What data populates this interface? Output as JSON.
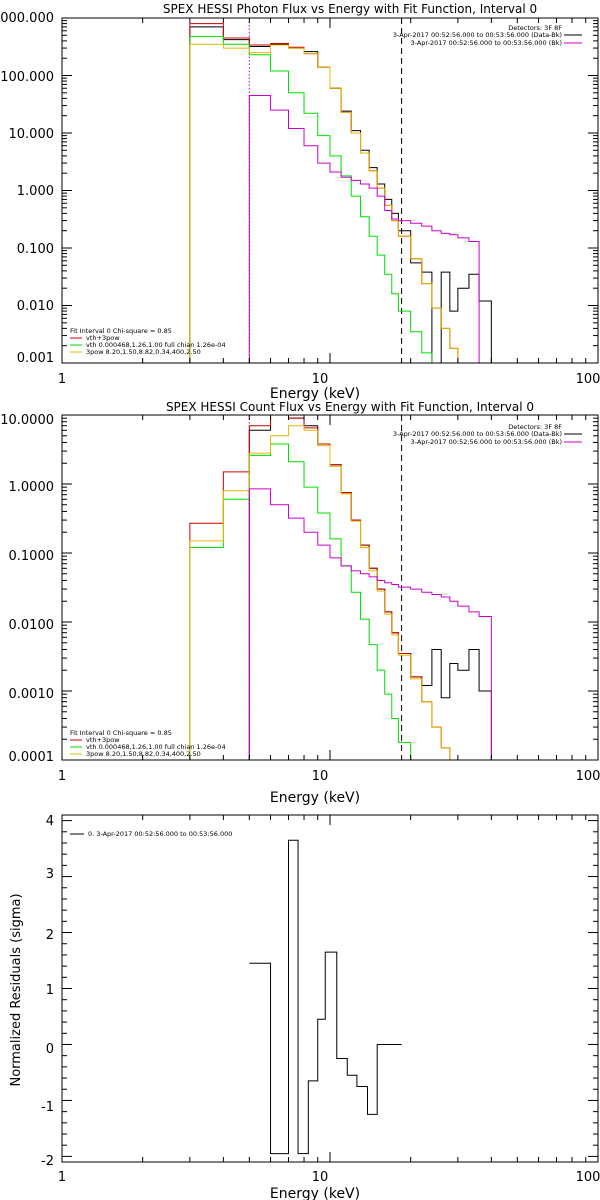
{
  "colors": {
    "data": "#000000",
    "vth_plus_3pow": "#cc0000",
    "vth": "#00dd00",
    "pow": "#e6b800",
    "background": "#cc00cc",
    "marker_low": "#cc00cc",
    "marker_high": "#000000"
  },
  "chart_data": [
    {
      "id": "photon",
      "type": "line",
      "title": "SPEX HESSI Photon Flux vs Energy with Fit Function, Interval 0",
      "xlabel": "Energy (keV)",
      "ylabel": "",
      "xscale": "log",
      "yscale": "log",
      "xlim": [
        1,
        100
      ],
      "ylim": [
        0.001,
        1000
      ],
      "xticks": [
        1,
        10,
        100
      ],
      "xtick_labels": [
        "1",
        "10",
        "100"
      ],
      "yticks": [
        0.001,
        0.01,
        0.1,
        1,
        10,
        100,
        1000
      ],
      "ytick_labels": [
        "0.001",
        "0.010",
        "0.100",
        "1.000",
        "10.000",
        "100.000",
        "1000.000"
      ],
      "legend_placement": "top-right",
      "legend_header": "Detectors: 3F 8F",
      "legend_entries": [
        {
          "label": "3-Apr-2017 00:52:56.000 to 00:53:56.000 (Data-Bk)",
          "color": "#000000"
        },
        {
          "label": "3-Apr-2017 00:52:56.000 to 00:53:56.000 (Bk)",
          "color": "#cc00cc"
        }
      ],
      "fit_labels": [
        {
          "text": "Fit Interval 0   Chi-square = 0.85",
          "color": "#000000"
        },
        {
          "text": "vth+3pow",
          "color": "#cc0000"
        },
        {
          "text": "vth 0.000468,1.26,1.00  full chian 1.26e-04",
          "color": "#00dd00"
        },
        {
          "text": "3pow 8.20,1.50,8.82,0.34,400,2.50",
          "color": "#e6b800"
        }
      ],
      "vlines": [
        {
          "x": 5.0,
          "color": "#cc00cc",
          "style": "dotted"
        },
        {
          "x": 18.5,
          "color": "#000000",
          "style": "dashed"
        }
      ],
      "bin_edges": [
        3,
        4,
        5,
        6,
        7,
        8,
        9,
        10,
        11,
        12,
        13,
        14,
        15,
        16,
        17,
        18,
        20,
        22,
        24,
        26,
        28,
        30,
        33,
        36,
        40
      ],
      "series": [
        {
          "name": "Data-Bk",
          "color": "#000000",
          "values": [
            700,
            420,
            320,
            350,
            300,
            260,
            140,
            60,
            24,
            11,
            5,
            2.5,
            1.3,
            0.7,
            0.4,
            0.2,
            0.055,
            0.038,
            null,
            0.038,
            0.008,
            0.02,
            0.035,
            0.012
          ]
        },
        {
          "name": "vth+3pow",
          "color": "#cc0000",
          "values": [
            800,
            450,
            340,
            360,
            310,
            240,
            140,
            60,
            23,
            10,
            4.5,
            2.2,
            1.1,
            0.55,
            0.3,
            0.16,
            0.065,
            0.024,
            0.009,
            0.004,
            0.0018,
            0.001
          ]
        },
        {
          "name": "vth",
          "color": "#00dd00",
          "values": [
            480,
            350,
            230,
            120,
            50,
            22,
            9,
            4,
            1.8,
            0.8,
            0.35,
            0.16,
            0.075,
            0.035,
            0.016,
            0.008,
            0.0035,
            0.0015
          ]
        },
        {
          "name": "3pow",
          "color": "#e6b800",
          "values": [
            350,
            300,
            250,
            340,
            300,
            240,
            140,
            60,
            23,
            10,
            4.5,
            2.2,
            1.1,
            0.55,
            0.3,
            0.16,
            0.065,
            0.024,
            0.009,
            0.004,
            0.0018,
            0.001
          ]
        },
        {
          "name": "Bk",
          "color": "#cc00cc",
          "values": [
            null,
            null,
            45,
            25,
            12,
            6,
            3,
            2.1,
            1.7,
            1.5,
            1.3,
            1.1,
            0.8,
            0.45,
            0.32,
            0.3,
            0.27,
            0.24,
            0.2,
            0.18,
            0.17,
            0.15,
            0.13
          ]
        }
      ]
    },
    {
      "id": "count",
      "type": "line",
      "title": "SPEX HESSI Count Flux vs Energy with Fit Function, Interval 0",
      "xlabel": "Energy (keV)",
      "ylabel": "",
      "xscale": "log",
      "yscale": "log",
      "xlim": [
        1,
        100
      ],
      "ylim": [
        0.0001,
        10
      ],
      "xticks": [
        1,
        10,
        100
      ],
      "xtick_labels": [
        "1",
        "10",
        "100"
      ],
      "yticks": [
        0.0001,
        0.001,
        0.01,
        0.1,
        1,
        10
      ],
      "ytick_labels": [
        "0.0001",
        "0.0010",
        "0.0100",
        "0.1000",
        "1.0000",
        "10.0000"
      ],
      "legend_placement": "top-right",
      "legend_header": "Detectors: 3F 8F",
      "legend_entries": [
        {
          "label": "3-Apr-2017 00:52:56.000 to 00:53:56.000 (Data-Bk)",
          "color": "#000000"
        },
        {
          "label": "3-Apr-2017 00:52:56.000 to 00:53:56.000 (Bk)",
          "color": "#cc00cc"
        }
      ],
      "fit_labels": [
        {
          "text": "Fit Interval 0   Chi-square = 0.85",
          "color": "#000000"
        },
        {
          "text": "vth+3pow",
          "color": "#cc0000"
        },
        {
          "text": "vth 0.000468,1.26,1.00  full chian 1.26e-04",
          "color": "#00dd00"
        },
        {
          "text": "3pow 8.20,1.50,8.82,0.34,400,2.50",
          "color": "#e6b800"
        }
      ],
      "vlines": [
        {
          "x": 5.0,
          "color": "#cc00cc",
          "style": "dotted"
        },
        {
          "x": 18.5,
          "color": "#000000",
          "style": "dashed"
        }
      ],
      "bin_edges": [
        3,
        4,
        5,
        6,
        7,
        8,
        9,
        10,
        11,
        12,
        13,
        14,
        15,
        16,
        17,
        18,
        20,
        22,
        24,
        26,
        28,
        30,
        33,
        36,
        40
      ],
      "series": [
        {
          "name": "Data-Bk",
          "color": "#000000",
          "values": [
            null,
            null,
            6,
            10,
            9,
            7,
            3.8,
            1.9,
            0.75,
            0.3,
            0.13,
            0.06,
            0.03,
            0.014,
            0.007,
            0.0035,
            0.0016,
            0.0012,
            0.004,
            0.0008,
            0.0025,
            0.002,
            0.004,
            0.001
          ]
        },
        {
          "name": "vth+3pow",
          "color": "#cc0000",
          "values": [
            0.27,
            1.5,
            7,
            10,
            9,
            6.5,
            3.8,
            1.9,
            0.75,
            0.3,
            0.13,
            0.06,
            0.03,
            0.014,
            0.007,
            0.0035,
            0.0016,
            0.0007,
            0.0003,
            0.00015
          ]
        },
        {
          "name": "vth",
          "color": "#00dd00",
          "values": [
            0.12,
            0.6,
            2.6,
            3.8,
            2.1,
            0.9,
            0.38,
            0.16,
            0.065,
            0.027,
            0.011,
            0.0047,
            0.002,
            0.0009,
            0.0004,
            0.00018,
            0.0001
          ]
        },
        {
          "name": "3pow",
          "color": "#e6b800",
          "values": [
            0.15,
            0.8,
            2.8,
            5,
            7,
            6,
            3.6,
            1.8,
            0.72,
            0.29,
            0.12,
            0.055,
            0.028,
            0.013,
            0.0065,
            0.0033,
            0.0015,
            0.0007,
            0.0003,
            0.00015
          ]
        },
        {
          "name": "Bk",
          "color": "#cc00cc",
          "values": [
            null,
            null,
            0.85,
            0.5,
            0.32,
            0.2,
            0.13,
            0.085,
            0.065,
            0.055,
            0.05,
            0.045,
            0.04,
            0.037,
            0.035,
            0.032,
            0.03,
            0.027,
            0.025,
            0.023,
            0.02,
            0.017,
            0.014,
            0.012
          ]
        }
      ]
    },
    {
      "id": "residuals",
      "type": "line",
      "title": "",
      "xlabel": "Energy (keV)",
      "ylabel": "Normalized Residuals (sigma)",
      "xscale": "log",
      "yscale": "linear",
      "xlim": [
        1,
        100
      ],
      "ylim": [
        -2.1,
        4.1
      ],
      "xticks": [
        1,
        10,
        100
      ],
      "xtick_labels": [
        "1",
        "10",
        "100"
      ],
      "yticks": [
        -2,
        -1,
        0,
        1,
        2,
        3,
        4
      ],
      "ytick_labels": [
        "-2",
        "-1",
        "0",
        "1",
        "2",
        "3",
        "4"
      ],
      "legend_placement": "top-left",
      "legend_entries": [
        {
          "label": "0. 3-Apr-2017 00:52:56.000 to 00:53:56.000",
          "color": "#000000"
        }
      ],
      "bin_edges": [
        5,
        6,
        7,
        7.6,
        8.3,
        9,
        9.6,
        10.6,
        11.6,
        12.6,
        13.8,
        15,
        16,
        18.5,
        40
      ],
      "series": [
        {
          "name": "",
          "color": "#000000",
          "values": [
            1.45,
            -1.95,
            3.65,
            -1.95,
            -0.65,
            0.45,
            1.65,
            -0.25,
            -0.55,
            -0.75,
            -1.25,
            0.0,
            0.0,
            null
          ]
        }
      ]
    }
  ]
}
